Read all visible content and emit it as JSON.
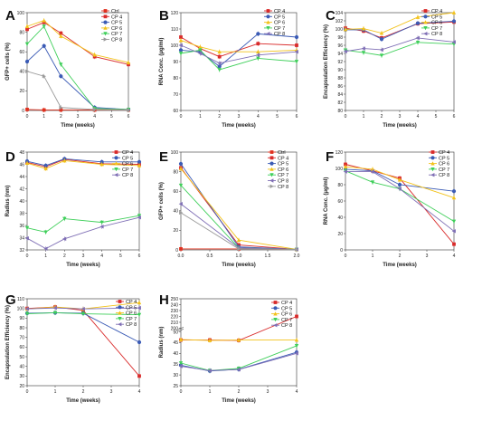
{
  "colors": {
    "Ctrl": "#e0301e",
    "CP 4": "#d92b2b",
    "CP 5": "#3b5bb5",
    "CP 6": "#f2c21b",
    "CP 7": "#3fcf5a",
    "CP 8": "#7f6fb5",
    "CP 8g": "#9a9a9a"
  },
  "chart_data": [
    {
      "panel": "A",
      "type": "line",
      "xlabel": "Time (weeks)",
      "ylabel": "GFP+ cells (%)",
      "xlim": [
        0,
        6
      ],
      "ylim": [
        0,
        100
      ],
      "xticks": [
        0,
        1,
        2,
        3,
        4,
        5,
        6
      ],
      "yticks": [
        0,
        20,
        40,
        60,
        80,
        100
      ],
      "legend": "top-right",
      "series": [
        {
          "name": "Ctrl",
          "color_key": "Ctrl",
          "x": [
            0,
            1,
            2,
            4,
            6
          ],
          "y": [
            1,
            0.5,
            0.5,
            0.5,
            0.5
          ]
        },
        {
          "name": "CP 4",
          "color_key": "CP 4",
          "x": [
            0,
            1,
            2,
            4,
            6
          ],
          "y": [
            83,
            90,
            79,
            55,
            47
          ]
        },
        {
          "name": "CP 5",
          "color_key": "CP 5",
          "x": [
            0,
            1,
            2,
            4,
            6
          ],
          "y": [
            50,
            66,
            35,
            3,
            1
          ]
        },
        {
          "name": "CP 6",
          "color_key": "CP 6",
          "x": [
            0,
            1,
            2,
            4,
            6
          ],
          "y": [
            86,
            92,
            76,
            57,
            49
          ]
        },
        {
          "name": "CP 7",
          "color_key": "CP 7",
          "x": [
            0,
            1,
            2,
            4,
            6
          ],
          "y": [
            68,
            86,
            47,
            2,
            1
          ]
        },
        {
          "name": "CP 8",
          "color_key": "CP 8g",
          "x": [
            0,
            1,
            2,
            4,
            6
          ],
          "y": [
            40,
            35,
            3,
            1,
            0.5
          ]
        }
      ]
    },
    {
      "panel": "B",
      "type": "line",
      "xlabel": "Time (weeks)",
      "ylabel": "RNA Conc. (μg/ml)",
      "xlim": [
        0,
        6
      ],
      "ylim": [
        60,
        120
      ],
      "xticks": [
        0,
        1,
        2,
        3,
        4,
        5,
        6
      ],
      "yticks": [
        60,
        70,
        80,
        90,
        100,
        110,
        120
      ],
      "legend": "top-right",
      "series": [
        {
          "name": "CP 4",
          "color_key": "CP 4",
          "x": [
            0,
            1,
            2,
            4,
            6
          ],
          "y": [
            105,
            98,
            93,
            101,
            100
          ]
        },
        {
          "name": "CP 5",
          "color_key": "CP 5",
          "x": [
            0,
            1,
            2,
            4,
            6
          ],
          "y": [
            97,
            96,
            87,
            107,
            105
          ]
        },
        {
          "name": "CP 6",
          "color_key": "CP 6",
          "x": [
            0,
            1,
            2,
            4,
            6
          ],
          "y": [
            103,
            99,
            96,
            96,
            97
          ]
        },
        {
          "name": "CP 7",
          "color_key": "CP 7",
          "x": [
            0,
            1,
            2,
            4,
            6
          ],
          "y": [
            95,
            97,
            85,
            92,
            90
          ]
        },
        {
          "name": "CP 8",
          "color_key": "CP 8",
          "x": [
            0,
            1,
            2,
            4,
            6
          ],
          "y": [
            100,
            95,
            89,
            94,
            96
          ]
        }
      ]
    },
    {
      "panel": "C",
      "type": "line",
      "xlabel": "Time (weeks)",
      "ylabel": "Encapsulation Efficiency (%)",
      "xlim": [
        0,
        6
      ],
      "ylim": [
        80,
        104
      ],
      "xticks": [
        0,
        1,
        2,
        3,
        4,
        5,
        6
      ],
      "yticks": [
        80,
        82,
        84,
        86,
        88,
        90,
        92,
        94,
        96,
        98,
        100,
        102,
        104
      ],
      "legend": "top-right",
      "series": [
        {
          "name": "CP 4",
          "color_key": "CP 4",
          "x": [
            0,
            1,
            2,
            4,
            6
          ],
          "y": [
            100.2,
            99.5,
            97.8,
            101.3,
            101.7
          ]
        },
        {
          "name": "CP 5",
          "color_key": "CP 5",
          "x": [
            0,
            1,
            2,
            4,
            6
          ],
          "y": [
            99.8,
            99.8,
            97.5,
            101.4,
            101.9
          ]
        },
        {
          "name": "CP 6",
          "color_key": "CP 6",
          "x": [
            0,
            1,
            2,
            4,
            6
          ],
          "y": [
            99.9,
            100.1,
            99.0,
            102.9,
            104.0
          ]
        },
        {
          "name": "CP 7",
          "color_key": "CP 7",
          "x": [
            0,
            1,
            2,
            4,
            6
          ],
          "y": [
            94.8,
            94.2,
            93.5,
            96.7,
            96.3
          ]
        },
        {
          "name": "CP 8",
          "color_key": "CP 8",
          "x": [
            0,
            1,
            2,
            4,
            6
          ],
          "y": [
            94.5,
            95.2,
            94.9,
            97.8,
            96.8
          ]
        }
      ]
    },
    {
      "panel": "D",
      "type": "line",
      "xlabel": "Time (weeks)",
      "ylabel": "Radius (nm)",
      "xlim": [
        0,
        6
      ],
      "ylim": [
        32,
        48
      ],
      "xticks": [
        0,
        1,
        2,
        3,
        4,
        5,
        6
      ],
      "yticks": [
        32,
        34,
        36,
        38,
        40,
        42,
        44,
        46,
        48
      ],
      "legend": "top-right",
      "series": [
        {
          "name": "CP 4",
          "color_key": "CP 4",
          "x": [
            0,
            1,
            2,
            4,
            6
          ],
          "y": [
            46.3,
            45.6,
            46.8,
            46.1,
            46.0
          ]
        },
        {
          "name": "CP 5",
          "color_key": "CP 5",
          "x": [
            0,
            1,
            2,
            4,
            6
          ],
          "y": [
            46.5,
            45.8,
            46.9,
            46.4,
            46.4
          ]
        },
        {
          "name": "CP 6",
          "color_key": "CP 6",
          "x": [
            0,
            1,
            2,
            4,
            6
          ],
          "y": [
            46.2,
            45.3,
            46.6,
            46.0,
            45.8
          ]
        },
        {
          "name": "CP 7",
          "color_key": "CP 7",
          "x": [
            0,
            1,
            2,
            4,
            6
          ],
          "y": [
            35.6,
            34.9,
            37.1,
            36.5,
            37.6
          ]
        },
        {
          "name": "CP 8",
          "color_key": "CP 8",
          "x": [
            0,
            1,
            2,
            4,
            6
          ],
          "y": [
            33.9,
            32.2,
            33.8,
            35.8,
            37.3
          ]
        }
      ]
    },
    {
      "panel": "E",
      "type": "line",
      "xlabel": "Time (weeks)",
      "ylabel": "GFP+ cells (%)",
      "xlim": [
        0,
        2
      ],
      "ylim": [
        0,
        100
      ],
      "xticks": [
        0.0,
        0.5,
        1.0,
        1.5,
        2.0
      ],
      "yticks": [
        0,
        20,
        40,
        60,
        80,
        100
      ],
      "legend": "top-right",
      "series": [
        {
          "name": "Ctrl",
          "color_key": "Ctrl",
          "x": [
            0,
            1,
            2
          ],
          "y": [
            1,
            1,
            0.5
          ]
        },
        {
          "name": "CP 4",
          "color_key": "CP 4",
          "x": [
            0,
            1,
            2
          ],
          "y": [
            84,
            5,
            0.5
          ]
        },
        {
          "name": "CP 5",
          "color_key": "CP 5",
          "x": [
            0,
            1,
            2
          ],
          "y": [
            88,
            3,
            0.5
          ]
        },
        {
          "name": "CP 6",
          "color_key": "CP 6",
          "x": [
            0,
            1,
            2
          ],
          "y": [
            83,
            10,
            0.5
          ]
        },
        {
          "name": "CP 7",
          "color_key": "CP 7",
          "x": [
            0,
            1,
            2
          ],
          "y": [
            66,
            2,
            0.5
          ]
        },
        {
          "name": "CP 8",
          "color_key": "CP 8",
          "x": [
            0,
            1,
            2
          ],
          "y": [
            47,
            2,
            0.5
          ]
        },
        {
          "name": "CP 8",
          "color_key": "CP 8g",
          "x": [
            0,
            1,
            2
          ],
          "y": [
            38,
            1,
            0.5
          ]
        }
      ]
    },
    {
      "panel": "F",
      "type": "line",
      "xlabel": "Time (weeks)",
      "ylabel": "RNA Conc. (μg/ml)",
      "xlim": [
        0,
        4
      ],
      "ylim": [
        0,
        120
      ],
      "xticks": [
        0,
        1,
        2,
        3,
        4
      ],
      "yticks": [
        0,
        20,
        40,
        60,
        80,
        100,
        120
      ],
      "legend": "top-right",
      "series": [
        {
          "name": "CP 4",
          "color_key": "CP 4",
          "x": [
            0,
            1,
            2,
            4
          ],
          "y": [
            105,
            97,
            88,
            7
          ]
        },
        {
          "name": "CP 5",
          "color_key": "CP 5",
          "x": [
            0,
            1,
            2,
            4
          ],
          "y": [
            99,
            97,
            80,
            72
          ]
        },
        {
          "name": "CP 6",
          "color_key": "CP 6",
          "x": [
            0,
            1,
            2,
            4
          ],
          "y": [
            102,
            99,
            86,
            64
          ]
        },
        {
          "name": "CP 7",
          "color_key": "CP 7",
          "x": [
            0,
            1,
            2,
            4
          ],
          "y": [
            97,
            83,
            75,
            35
          ]
        },
        {
          "name": "CP 8",
          "color_key": "CP 8",
          "x": [
            0,
            1,
            2,
            4
          ],
          "y": [
            96,
            96,
            75,
            23
          ]
        }
      ]
    },
    {
      "panel": "G",
      "type": "line",
      "xlabel": "Time (weeks)",
      "ylabel": "Encapsulation Efficiency (%)",
      "xlim": [
        0,
        4
      ],
      "ylim": [
        20,
        110
      ],
      "xticks": [
        0,
        1,
        2,
        3,
        4
      ],
      "yticks": [
        20,
        30,
        40,
        50,
        60,
        70,
        80,
        90,
        100,
        110
      ],
      "legend": "top-right",
      "series": [
        {
          "name": "CP 4",
          "color_key": "CP 4",
          "x": [
            0,
            1,
            2,
            4
          ],
          "y": [
            100,
            101.5,
            98,
            30
          ]
        },
        {
          "name": "CP 5",
          "color_key": "CP 5",
          "x": [
            0,
            1,
            2,
            4
          ],
          "y": [
            95,
            95.5,
            95,
            65
          ]
        },
        {
          "name": "CP 6",
          "color_key": "CP 6",
          "x": [
            0,
            1,
            2,
            4
          ],
          "y": [
            99.5,
            101.5,
            99.5,
            106
          ]
        },
        {
          "name": "CP 7",
          "color_key": "CP 7",
          "x": [
            0,
            1,
            2,
            4
          ],
          "y": [
            94.5,
            95.5,
            94.5,
            93.5
          ]
        },
        {
          "name": "CP 8",
          "color_key": "CP 8",
          "x": [
            0,
            1,
            2,
            4
          ],
          "y": [
            99.5,
            100.5,
            99.5,
            100.5
          ]
        }
      ]
    },
    {
      "panel": "H",
      "type": "line",
      "xlabel": "Time (weeks)",
      "ylabel": "Radius (nm)",
      "xlim": [
        0,
        4
      ],
      "ylim": [
        25,
        250
      ],
      "ybreak": [
        50,
        200
      ],
      "xticks": [
        0,
        1,
        2,
        3,
        4
      ],
      "yticks": [
        25,
        30,
        35,
        40,
        45,
        50,
        200,
        210,
        220,
        230,
        240,
        250
      ],
      "legend": "top-right",
      "series": [
        {
          "name": "CP 4",
          "color_key": "CP 4",
          "x": [
            0,
            1,
            2,
            4
          ],
          "y": [
            46.2,
            46.2,
            46.0,
            220
          ]
        },
        {
          "name": "CP 5",
          "color_key": "CP 5",
          "x": [
            0,
            1,
            2,
            4
          ],
          "y": [
            34.5,
            31.8,
            32.6,
            40.5
          ]
        },
        {
          "name": "CP 6",
          "color_key": "CP 6",
          "x": [
            0,
            1,
            2,
            4
          ],
          "y": [
            46.4,
            46.0,
            46.2,
            46.2
          ]
        },
        {
          "name": "CP 7",
          "color_key": "CP 7",
          "x": [
            0,
            1,
            2,
            4
          ],
          "y": [
            35.5,
            32.0,
            33.0,
            43.5
          ]
        },
        {
          "name": "CP 8",
          "color_key": "CP 8",
          "x": [
            0,
            1,
            2,
            4
          ],
          "y": [
            34.0,
            32.0,
            32.5,
            40.0
          ]
        }
      ]
    }
  ]
}
